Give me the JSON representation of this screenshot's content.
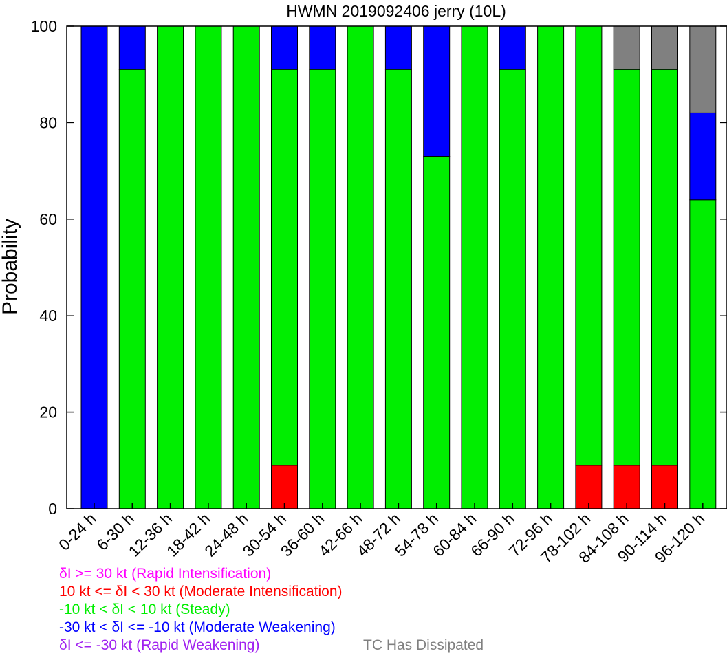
{
  "chart_data": {
    "type": "bar",
    "stacked": true,
    "title": "HWMN 2019092406 jerry (10L)",
    "xlabel": "",
    "ylabel": "Probability",
    "ylim": [
      0,
      100
    ],
    "yticks": [
      0,
      20,
      40,
      60,
      80,
      100
    ],
    "ytick_labels": [
      "0",
      "20",
      "40",
      "60",
      "80",
      "100"
    ],
    "categories": [
      "0-24 h",
      "6-30 h",
      "12-36 h",
      "18-42 h",
      "24-48 h",
      "30-54 h",
      "36-60 h",
      "42-66 h",
      "48-72 h",
      "54-78 h",
      "60-84 h",
      "66-90 h",
      "72-96 h",
      "78-102 h",
      "84-108 h",
      "90-114 h",
      "96-120 h"
    ],
    "grid": false,
    "series": [
      {
        "name": "δI <= -30 kt (Rapid Weakening)",
        "color": "#a020f0",
        "values": [
          0,
          0,
          0,
          0,
          0,
          0,
          0,
          0,
          0,
          0,
          0,
          0,
          0,
          0,
          0,
          0,
          0
        ]
      },
      {
        "name": "δI >= 30 kt (Rapid Intensification)",
        "color": "#ff00ff",
        "values": [
          0,
          0,
          0,
          0,
          0,
          0,
          0,
          0,
          0,
          0,
          0,
          0,
          0,
          0,
          0,
          0,
          0
        ]
      },
      {
        "name": "10 kt <= δI < 30 kt (Moderate Intensification)",
        "color": "#ff0000",
        "values": [
          0,
          0,
          0,
          0,
          0,
          9,
          0,
          0,
          0,
          0,
          0,
          0,
          0,
          9,
          9,
          9,
          0
        ]
      },
      {
        "name": "-10 kt < δI < 10 kt (Steady)",
        "color": "#00ee00",
        "values": [
          0,
          91,
          100,
          100,
          100,
          82,
          91,
          100,
          91,
          73,
          100,
          91,
          100,
          91,
          82,
          82,
          64
        ]
      },
      {
        "name": "-30 kt < δI <= -10 kt (Moderate Weakening)",
        "color": "#0000ff",
        "values": [
          100,
          9,
          0,
          0,
          0,
          9,
          9,
          0,
          9,
          27,
          0,
          9,
          0,
          0,
          0,
          0,
          18
        ]
      },
      {
        "name": "TC Has Dissipated",
        "color": "#808080",
        "values": [
          0,
          0,
          0,
          0,
          0,
          0,
          0,
          0,
          0,
          0,
          0,
          0,
          0,
          0,
          9,
          9,
          18
        ]
      }
    ]
  },
  "legend": {
    "rapid_intensification": "δI >= 30 kt (Rapid Intensification)",
    "moderate_intensification": "10 kt <= δI < 30 kt (Moderate Intensification)",
    "steady": "-10 kt < δI < 10 kt (Steady)",
    "moderate_weakening": "-30 kt < δI <= -10 kt (Moderate Weakening)",
    "rapid_weakening": "δI <= -30 kt (Rapid Weakening)",
    "dissipated": "TC Has Dissipated"
  }
}
